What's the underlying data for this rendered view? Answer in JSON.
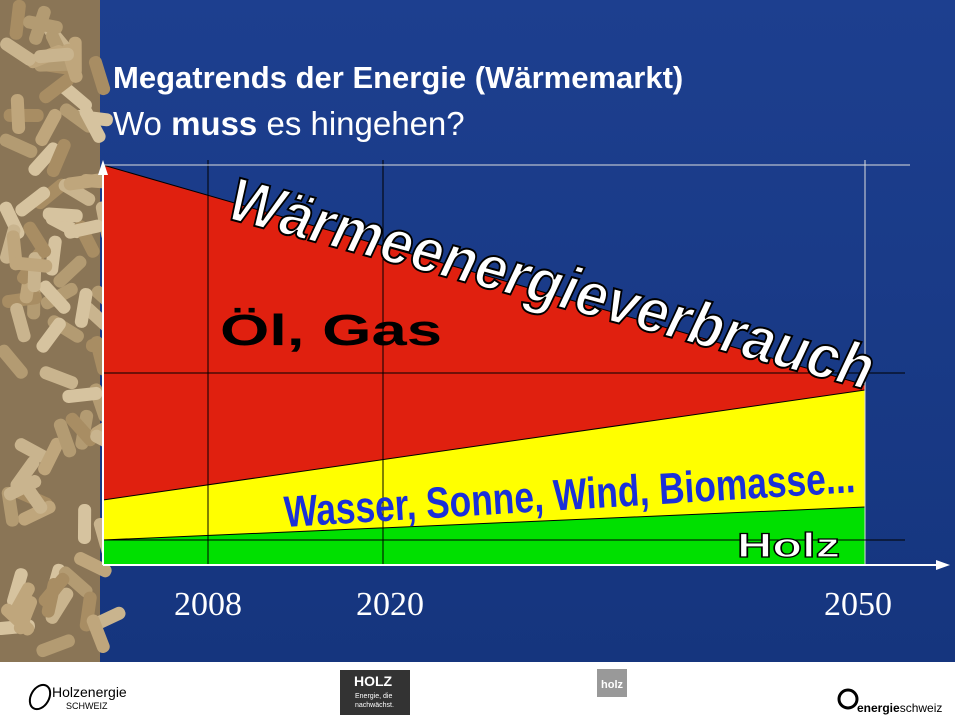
{
  "header": {
    "title": "Megatrends der Energie (Wärmemarkt)",
    "subtitle": [
      "Wo ",
      "muss",
      " es hingehen?"
    ]
  },
  "diagram": {
    "labels": {
      "total": "Wärmeenergieverbrauch",
      "fossil": "Öl, Gas",
      "renewables": "Wasser, Sonne, Wind, Biomasse...",
      "wood": "Holz"
    },
    "years": [
      "2008",
      "2020",
      "2050"
    ]
  },
  "footer": {
    "holzenergie": [
      "Holzenergie",
      "SCHWEIZ"
    ],
    "holz": [
      "HOLZ",
      "Energie, die",
      "nachwächst."
    ],
    "holz_small": "holz",
    "energieschweiz": [
      "energie",
      "schweiz"
    ]
  }
}
